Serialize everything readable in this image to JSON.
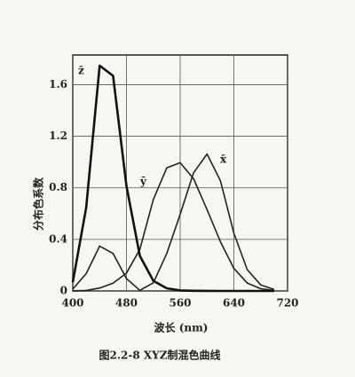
{
  "chart_data": {
    "type": "line",
    "x": [
      400,
      420,
      440,
      460,
      480,
      500,
      520,
      540,
      560,
      580,
      600,
      620,
      640,
      660,
      680,
      700
    ],
    "series": [
      {
        "name": "x̄",
        "color": "#222222",
        "values": [
          0.0143,
          0.1344,
          0.3483,
          0.2908,
          0.0956,
          0.0049,
          0.0633,
          0.2904,
          0.5945,
          0.9163,
          1.0622,
          0.8544,
          0.4479,
          0.1649,
          0.0468,
          0.0114
        ]
      },
      {
        "name": "ȳ",
        "color": "#222222",
        "values": [
          0.0004,
          0.004,
          0.023,
          0.06,
          0.139,
          0.323,
          0.71,
          0.954,
          0.995,
          0.87,
          0.631,
          0.381,
          0.175,
          0.061,
          0.017,
          0.0041
        ]
      },
      {
        "name": "z̄",
        "color": "#111111",
        "values": [
          0.0679,
          0.6456,
          1.7471,
          1.6692,
          0.813,
          0.272,
          0.0782,
          0.0203,
          0.0039,
          0.0017,
          0.0008,
          0.0002,
          0,
          0,
          0,
          0
        ]
      }
    ],
    "xlim": [
      400,
      720
    ],
    "xticks": [
      400,
      480,
      560,
      640,
      720
    ],
    "ylim": [
      0,
      1.83
    ],
    "yticks": [
      0,
      0.4,
      0.8,
      1.2,
      1.6
    ],
    "grid": true,
    "xlabel": "波长 (nm)",
    "ylabel": "分布色系数",
    "caption": "图2.2-8  XYZ制混色曲线"
  }
}
